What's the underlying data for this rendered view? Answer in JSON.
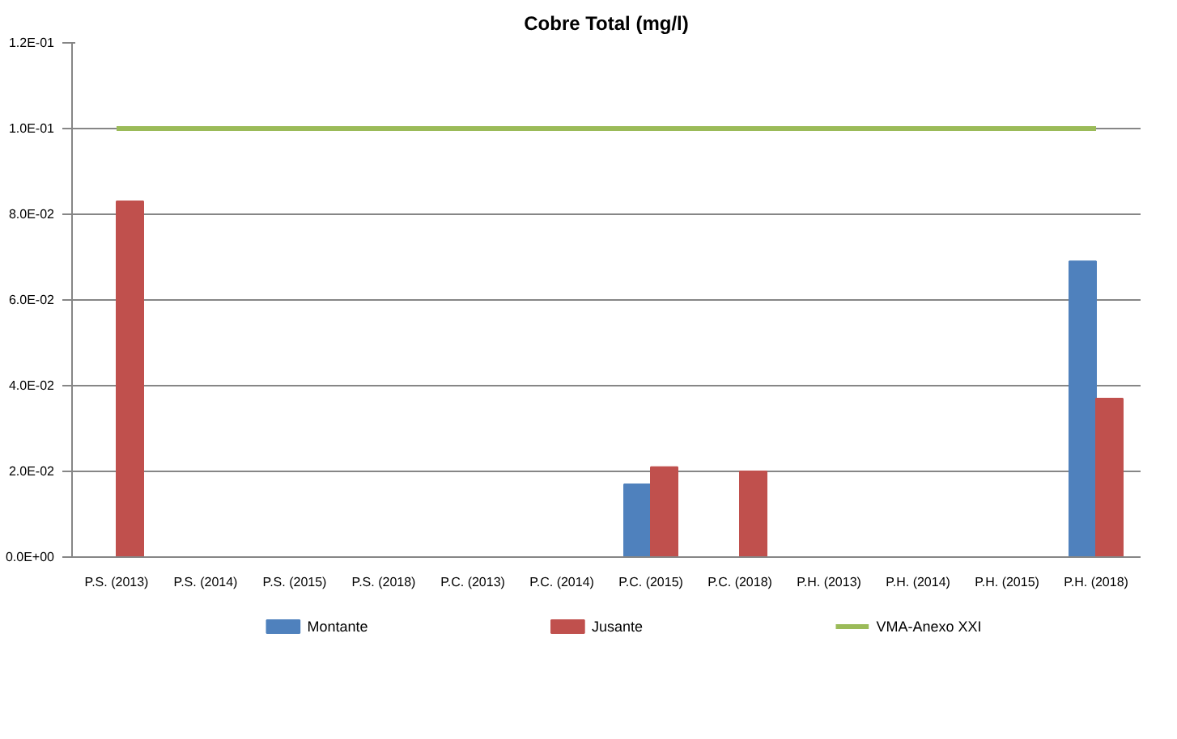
{
  "chart_data": {
    "type": "bar",
    "title": "Cobre Total (mg/l)",
    "categories": [
      "P.S. (2013)",
      "P.S. (2014)",
      "P.S. (2015)",
      "P.S. (2018)",
      "P.C. (2013)",
      "P.C. (2014)",
      "P.C. (2015)",
      "P.C. (2018)",
      "P.H. (2013)",
      "P.H. (2014)",
      "P.H. (2015)",
      "P.H. (2018)"
    ],
    "series": [
      {
        "name": "Montante",
        "color": "#4f81bd",
        "values": [
          null,
          null,
          null,
          null,
          null,
          null,
          0.017,
          null,
          null,
          null,
          null,
          0.069
        ]
      },
      {
        "name": "Jusante",
        "color": "#c0504d",
        "values": [
          0.083,
          null,
          null,
          null,
          null,
          null,
          0.021,
          0.02,
          null,
          null,
          null,
          0.037
        ]
      },
      {
        "name": "VMA-Anexo XXI",
        "type": "line",
        "color": "#9bbb59",
        "values": [
          0.1,
          0.1,
          0.1,
          0.1,
          0.1,
          0.1,
          0.1,
          0.1,
          0.1,
          0.1,
          0.1,
          0.1
        ]
      }
    ],
    "ylim": [
      0,
      0.12
    ],
    "yticks": [
      {
        "value": 0,
        "label": "0.0E+00"
      },
      {
        "value": 0.02,
        "label": "2.0E-02"
      },
      {
        "value": 0.04,
        "label": "4.0E-02"
      },
      {
        "value": 0.06,
        "label": "6.0E-02"
      },
      {
        "value": 0.08,
        "label": "8.0E-02"
      },
      {
        "value": 0.1,
        "label": "1.0E-01"
      },
      {
        "value": 0.12,
        "label": "1.2E-01"
      }
    ],
    "grid": "y",
    "legend": "bottom"
  }
}
